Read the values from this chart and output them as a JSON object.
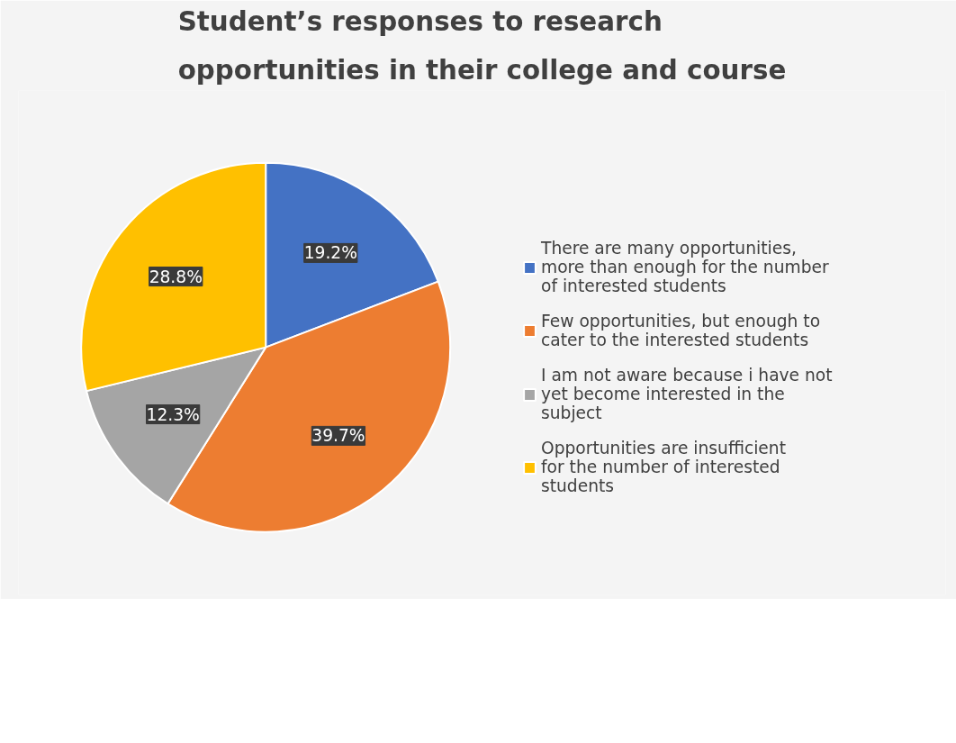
{
  "chart_data": {
    "type": "pie",
    "title": "Student’s responses to research opportunities in their college and course",
    "categories": [
      "There are many opportunities, more than enough for the number of interested students",
      "Few opportunities, but enough to cater to the interested students",
      "I am not aware because i have not yet become interested in the subject",
      "Opportunities are insufficient for the number of interested students"
    ],
    "values": [
      19.2,
      39.7,
      12.3,
      28.8
    ],
    "colors": [
      "#4472c4",
      "#ed7d31",
      "#a5a5a5",
      "#ffc000"
    ],
    "value_labels": [
      "19.2%",
      "39.7%",
      "12.3%",
      "28.8%"
    ],
    "legend": "right"
  }
}
